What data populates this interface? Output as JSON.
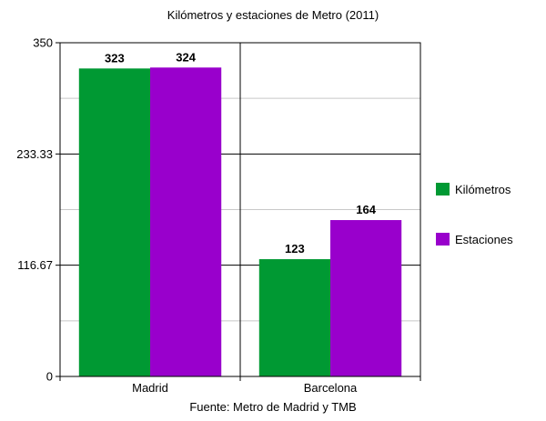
{
  "chart_data": {
    "type": "bar",
    "title": "Kilómetros y estaciones de Metro (2011)",
    "source": "Fuente: Metro de Madrid y TMB",
    "categories": [
      "Madrid",
      "Barcelona"
    ],
    "series": [
      {
        "name": "Kilómetros",
        "values": [
          323,
          123
        ],
        "color": "#009933"
      },
      {
        "name": "Estaciones",
        "values": [
          324,
          164
        ],
        "color": "#9900cc"
      }
    ],
    "yticks": [
      "0",
      "116.67",
      "233.33",
      "350"
    ],
    "ylim": [
      0,
      350
    ],
    "grid": true,
    "legend": "right"
  }
}
